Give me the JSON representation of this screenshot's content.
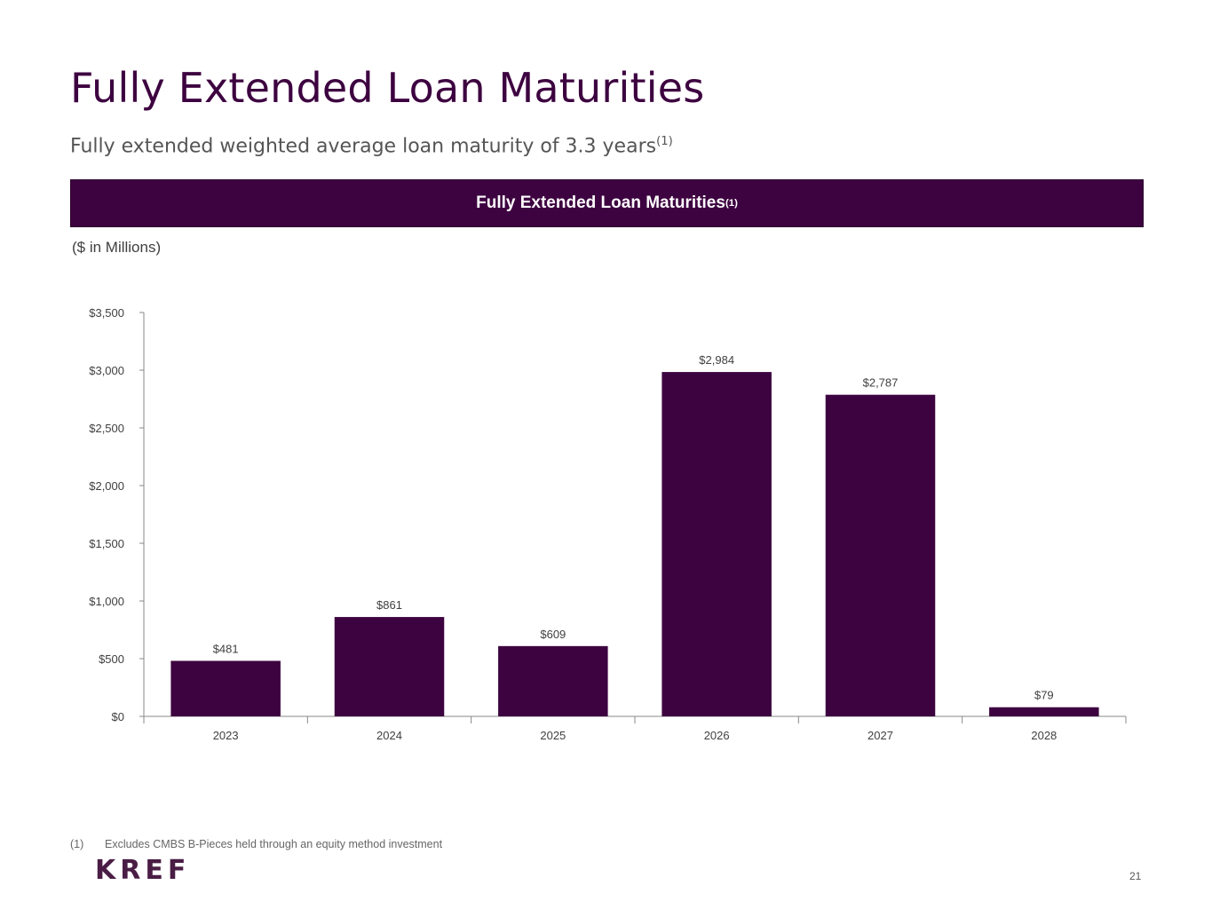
{
  "page": {
    "title": "Fully Extended Loan Maturities",
    "subtitle": "Fully extended weighted average loan maturity of 3.3 years",
    "subtitle_note": "(1)",
    "banner_title": "Fully Extended Loan Maturities",
    "banner_note": "(1)",
    "units": "($ in Millions)",
    "footnote_number": "(1)",
    "footnote_text": "Excludes CMBS B-Pieces held through an equity method investment",
    "logo": "KREF",
    "page_number": "21"
  },
  "colors": {
    "primary": "#3d0240",
    "axis": "#888888",
    "text": "#404040"
  },
  "chart_data": {
    "type": "bar",
    "categories": [
      "2023",
      "2024",
      "2025",
      "2026",
      "2027",
      "2028"
    ],
    "values": [
      481,
      861,
      609,
      2984,
      2787,
      79
    ],
    "data_labels": [
      "$481",
      "$861",
      "$609",
      "$2,984",
      "$2,787",
      "$79"
    ],
    "ylim": [
      0,
      3500
    ],
    "yticks": [
      0,
      500,
      1000,
      1500,
      2000,
      2500,
      3000,
      3500
    ],
    "ytick_labels": [
      "$0",
      "$500",
      "$1,000",
      "$1,500",
      "$2,000",
      "$2,500",
      "$3,000",
      "$3,500"
    ],
    "xlabel": "",
    "ylabel": "",
    "grid": false,
    "legend": false
  }
}
